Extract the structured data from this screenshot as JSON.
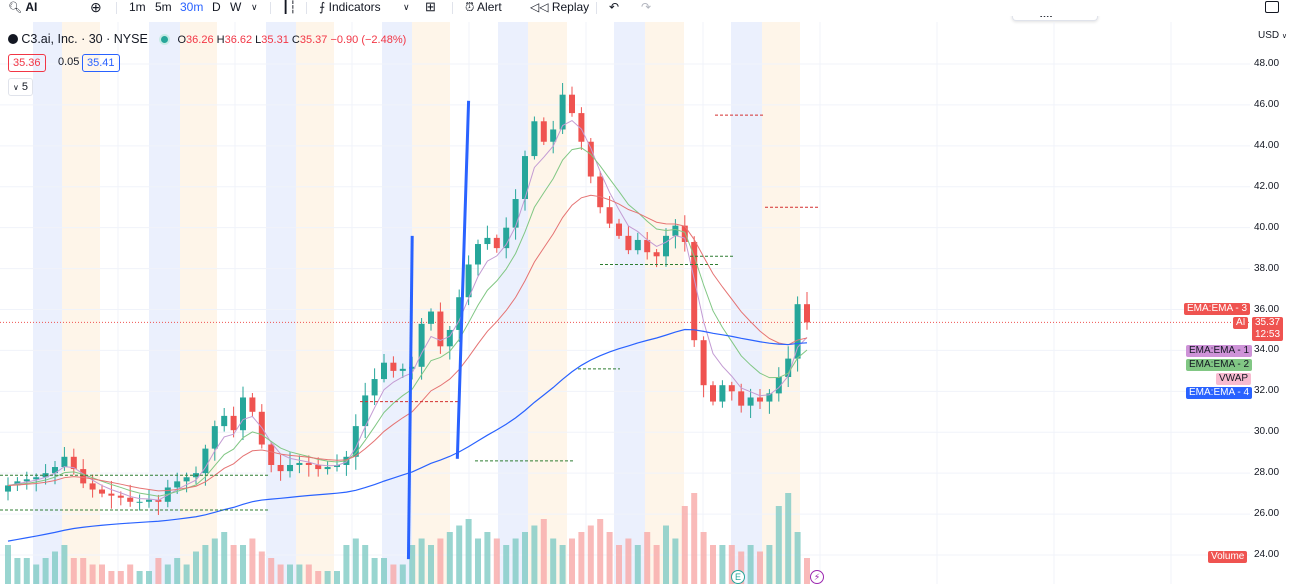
{
  "toolbar": {
    "symbol": "AI",
    "intervals": [
      "1m",
      "5m",
      "30m",
      "D",
      "W"
    ],
    "active_interval": "30m",
    "indicators_label": "Indicators",
    "alert_label": "Alert",
    "replay_label": "Replay"
  },
  "legend": {
    "title": "C3.ai, Inc. · 30 · NYSE",
    "o_label": "O",
    "o": "36.26",
    "h_label": "H",
    "h": "36.62",
    "l_label": "L",
    "l": "35.31",
    "c_label": "C",
    "c": "35.37",
    "change": "−0.90 (−2.48%)",
    "bid": "35.36",
    "spread": "0.05",
    "ask": "35.41",
    "indicator_count": "5"
  },
  "axis": {
    "currency": "USD",
    "ticks": [
      "48.00",
      "46.00",
      "44.00",
      "42.00",
      "40.00",
      "38.00",
      "36.00",
      "34.00",
      "32.00",
      "30.00",
      "28.00",
      "26.00",
      "24.00"
    ]
  },
  "tags": {
    "ema3": "EMA:EMA - 3",
    "ai_symbol": "AI",
    "last_price": "35.37",
    "countdown": "12:53",
    "ema1": "EMA:EMA - 1",
    "ema2": "EMA:EMA - 2",
    "vwap": "VWAP",
    "ema4": "EMA:EMA - 4",
    "volume": "Volume"
  },
  "colors": {
    "up": "#26a69a",
    "down": "#ef5350",
    "channel": "#2962ff",
    "ema1": "#c39bd3",
    "ema2": "#81c784",
    "ema3": "#e57373",
    "ema4": "#2962ff"
  },
  "chart_data": {
    "type": "candlestick",
    "symbol": "AI",
    "interval": "30",
    "ylim": [
      23.5,
      49.0
    ],
    "close": [
      27.4,
      27.6,
      27.7,
      27.8,
      28.0,
      28.3,
      28.8,
      28.2,
      27.5,
      27.2,
      27.0,
      26.9,
      26.8,
      26.6,
      26.6,
      26.7,
      26.6,
      27.3,
      27.6,
      27.8,
      28.0,
      29.2,
      30.3,
      30.8,
      30.1,
      31.7,
      31.0,
      29.4,
      28.4,
      28.1,
      28.4,
      28.5,
      28.4,
      28.2,
      28.3,
      28.4,
      28.8,
      30.3,
      31.8,
      32.6,
      33.4,
      33.0,
      33.1,
      33.2,
      35.3,
      35.9,
      34.2,
      35.0,
      36.6,
      38.2,
      39.2,
      39.5,
      39.0,
      40.0,
      41.4,
      43.5,
      45.2,
      44.2,
      44.8,
      46.5,
      45.6,
      44.2,
      42.5,
      41.0,
      40.2,
      39.6,
      38.9,
      39.4,
      38.8,
      38.6,
      39.6,
      40.1,
      39.3,
      34.5,
      32.3,
      31.5,
      32.3,
      32.0,
      31.3,
      31.7,
      31.5,
      31.9,
      32.7,
      33.6,
      36.26,
      35.37
    ],
    "volume_relative": [
      0.3,
      0.2,
      0.2,
      0.15,
      0.2,
      0.25,
      0.3,
      0.2,
      0.2,
      0.15,
      0.15,
      0.1,
      0.1,
      0.15,
      0.1,
      0.1,
      0.2,
      0.15,
      0.2,
      0.15,
      0.25,
      0.3,
      0.35,
      0.4,
      0.3,
      0.3,
      0.35,
      0.25,
      0.2,
      0.15,
      0.15,
      0.15,
      0.15,
      0.1,
      0.1,
      0.1,
      0.3,
      0.35,
      0.3,
      0.2,
      0.2,
      0.15,
      0.15,
      0.3,
      0.35,
      0.3,
      0.35,
      0.4,
      0.45,
      0.5,
      0.35,
      0.4,
      0.35,
      0.3,
      0.35,
      0.4,
      0.45,
      0.5,
      0.35,
      0.3,
      0.35,
      0.4,
      0.45,
      0.5,
      0.4,
      0.3,
      0.35,
      0.3,
      0.4,
      0.3,
      0.45,
      0.35,
      0.6,
      0.7,
      0.4,
      0.3,
      0.3,
      0.3,
      0.25,
      0.3,
      0.25,
      0.3,
      0.6,
      0.7,
      0.4,
      0.2
    ],
    "levels": [
      27.9,
      26.2,
      31.5,
      33.1,
      38.2,
      38.6,
      45.5,
      41.0,
      28.6
    ],
    "channel_upper": [
      [
        47.8,
        49.0
      ],
      [
        28.7,
        46.2
      ]
    ],
    "channel_lower": [
      [
        42.6,
        43.0
      ],
      [
        23.8,
        39.6
      ]
    ]
  }
}
